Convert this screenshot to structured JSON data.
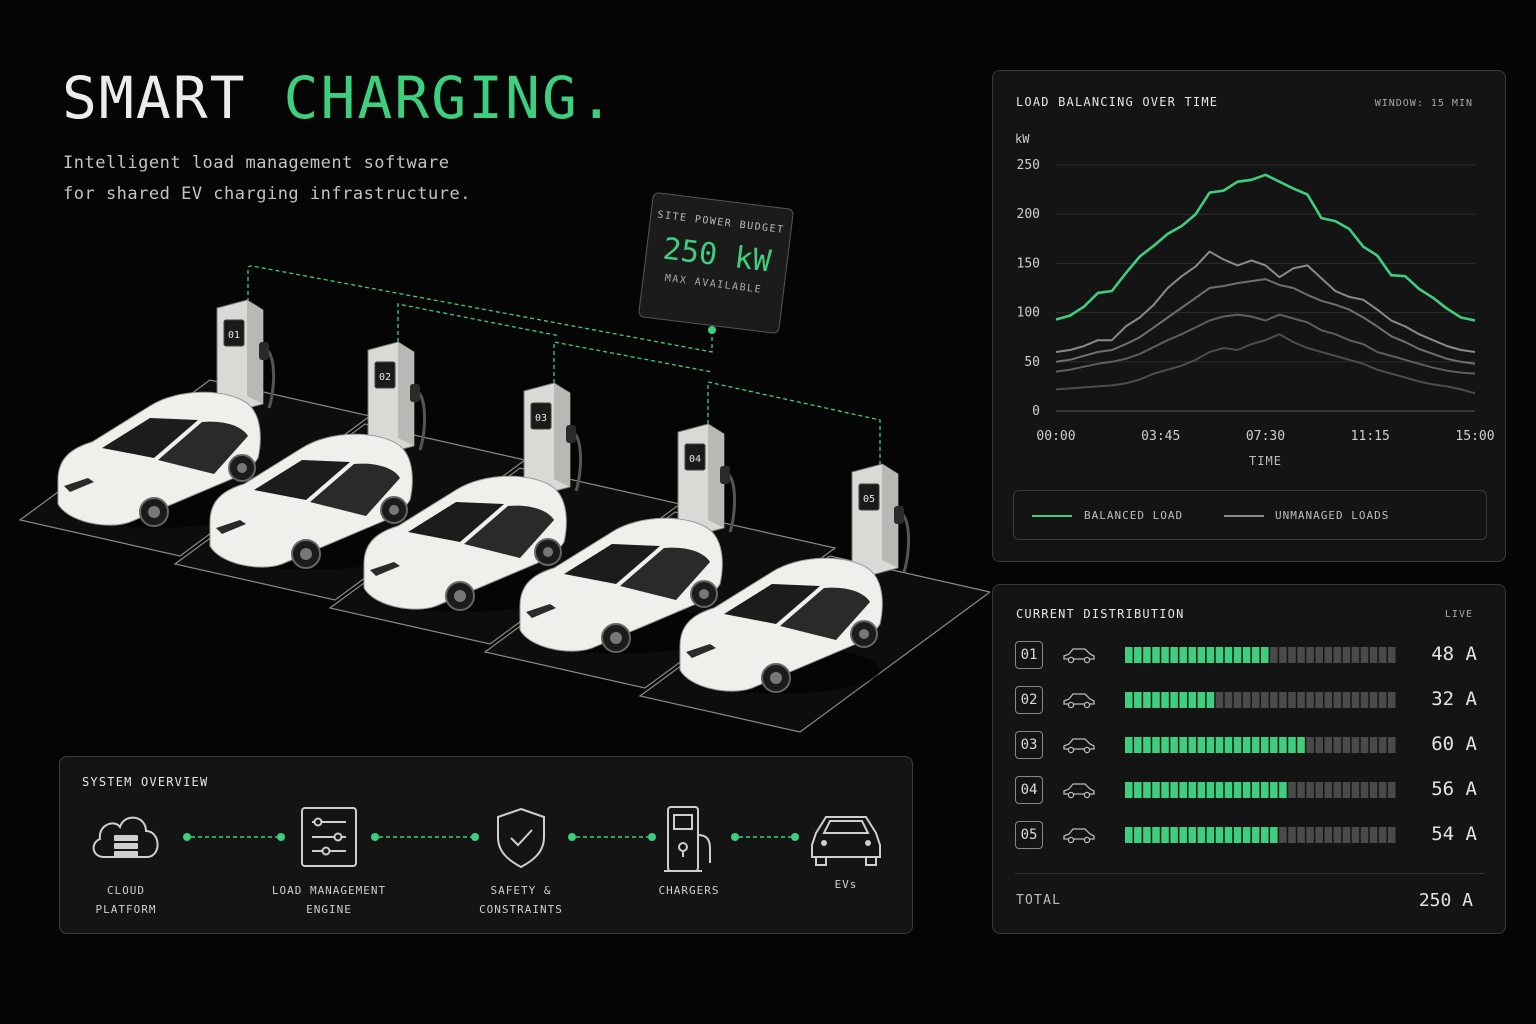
{
  "hero": {
    "title_main": "SMART",
    "title_accent": "CHARGING.",
    "subtitle": "Intelligent load management software\nfor shared EV charging infrastructure."
  },
  "site_budget": {
    "label": "SITE POWER BUDGET",
    "value": "250 kW",
    "sub": "MAX AVAILABLE"
  },
  "chargers": [
    "01",
    "02",
    "03",
    "04",
    "05"
  ],
  "load_chart": {
    "title": "LOAD BALANCING OVER TIME",
    "window": "WINDOW: 15 MIN"
  },
  "chart_data": {
    "type": "line",
    "title": "LOAD BALANCING OVER TIME",
    "xlabel": "TIME",
    "ylabel": "kW",
    "ylim": [
      0,
      250
    ],
    "yticks": [
      0,
      50,
      100,
      150,
      200,
      250
    ],
    "xticks": [
      "00:00",
      "03:45",
      "07:30",
      "11:15",
      "15:00"
    ],
    "x_hours": [
      0,
      0.5,
      1,
      1.5,
      2,
      2.5,
      3,
      3.5,
      4,
      4.5,
      5,
      5.5,
      6,
      6.5,
      7,
      7.5,
      8,
      8.5,
      9,
      9.5,
      10,
      10.5,
      11,
      11.5,
      12,
      12.5,
      13,
      13.5,
      14,
      14.5,
      15
    ],
    "legend_position": "bottom",
    "grid": true,
    "series": [
      {
        "name": "BALANCED LOAD",
        "color": "#3ecf7e",
        "values": [
          93,
          97,
          106,
          120,
          122,
          140,
          157,
          168,
          180,
          188,
          200,
          222,
          224,
          233,
          235,
          240,
          233,
          226,
          220,
          196,
          193,
          185,
          167,
          158,
          138,
          137,
          124,
          115,
          104,
          95,
          92
        ]
      },
      {
        "name": "UNMANAGED LOADS",
        "color": "#8a8a8a",
        "values": [
          60,
          62,
          66,
          72,
          72,
          86,
          95,
          108,
          125,
          137,
          147,
          162,
          154,
          148,
          153,
          148,
          136,
          145,
          148,
          135,
          122,
          116,
          113,
          103,
          92,
          86,
          78,
          72,
          66,
          62,
          60
        ]
      },
      {
        "name": "",
        "color": "#6f6f6f",
        "values": [
          50,
          52,
          56,
          60,
          62,
          68,
          75,
          85,
          95,
          105,
          115,
          125,
          127,
          130,
          132,
          134,
          128,
          125,
          118,
          112,
          108,
          103,
          95,
          86,
          76,
          70,
          63,
          58,
          53,
          50,
          48
        ]
      },
      {
        "name": "",
        "color": "#5e5e5e",
        "values": [
          40,
          42,
          45,
          48,
          50,
          53,
          58,
          65,
          72,
          78,
          85,
          92,
          96,
          98,
          96,
          92,
          98,
          94,
          90,
          82,
          78,
          72,
          68,
          60,
          56,
          52,
          48,
          44,
          41,
          39,
          38
        ]
      },
      {
        "name": "",
        "color": "#4d4d4d",
        "values": [
          22,
          23,
          24,
          25,
          26,
          28,
          32,
          38,
          42,
          46,
          52,
          60,
          64,
          62,
          68,
          72,
          78,
          70,
          64,
          60,
          56,
          52,
          48,
          42,
          38,
          34,
          30,
          27,
          25,
          22,
          18
        ]
      }
    ]
  },
  "legend": {
    "balanced": "BALANCED LOAD",
    "unmanaged": "UNMANAGED LOADS"
  },
  "distribution": {
    "title": "CURRENT DISTRIBUTION",
    "status": "LIVE",
    "rows": [
      {
        "id": "01",
        "amps": "48 A",
        "fill": 0.52
      },
      {
        "id": "02",
        "amps": "32 A",
        "fill": 0.33
      },
      {
        "id": "03",
        "amps": "60 A",
        "fill": 0.67
      },
      {
        "id": "04",
        "amps": "56 A",
        "fill": 0.61
      },
      {
        "id": "05",
        "amps": "54 A",
        "fill": 0.57
      }
    ],
    "total_label": "TOTAL",
    "total_value": "250 A"
  },
  "overview": {
    "title": "SYSTEM OVERVIEW",
    "nodes": [
      {
        "label": "CLOUD\nPLATFORM",
        "icon": "cloud-server-icon"
      },
      {
        "label": "LOAD MANAGEMENT\nENGINE",
        "icon": "sliders-icon"
      },
      {
        "label": "SAFETY &\nCONSTRAINTS",
        "icon": "shield-check-icon"
      },
      {
        "label": "CHARGERS",
        "icon": "charger-icon"
      },
      {
        "label": "EVs",
        "icon": "car-icon"
      }
    ]
  },
  "colors": {
    "accent": "#3ecf7e",
    "background": "#050505",
    "panel": "#141414"
  }
}
